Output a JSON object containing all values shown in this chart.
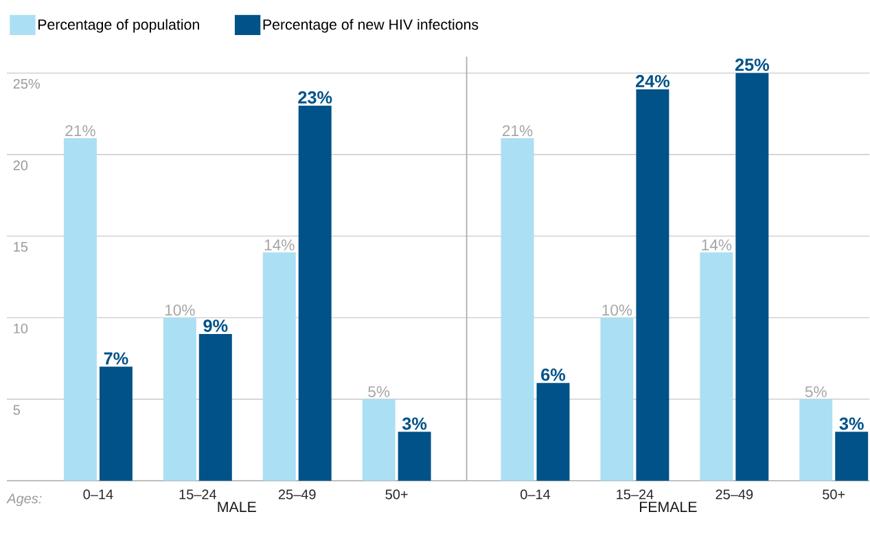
{
  "chart_data": [
    {
      "type": "bar",
      "xlabel": "MALE",
      "categories": [
        "0–14",
        "15–24",
        "25–49",
        "50+"
      ],
      "series": [
        {
          "name": "Percentage of population",
          "color": "#abdff3",
          "values": [
            21,
            10,
            14,
            5
          ],
          "value_labels": [
            "21%",
            "10%",
            "14%",
            "5%"
          ]
        },
        {
          "name": "Percentage of new HIV infections",
          "color": "#005288",
          "values": [
            7,
            9,
            23,
            3
          ],
          "value_labels": [
            "7%",
            "9%",
            "23%",
            "3%"
          ]
        }
      ],
      "ylim": [
        0,
        25
      ],
      "yticks": [
        5,
        10,
        15,
        20,
        {
          "value": 25,
          "label": "25%"
        }
      ],
      "grid": "y",
      "legend": "top left",
      "annotations": [
        "Ages:"
      ]
    },
    {
      "type": "bar",
      "xlabel": "FEMALE",
      "categories": [
        "0–14",
        "15–24",
        "25–49",
        "50+"
      ],
      "series": [
        {
          "color": "#abdff3",
          "values": [
            21,
            10,
            14,
            5
          ],
          "value_labels": [
            "21%",
            "10%",
            "14%",
            "5%"
          ]
        },
        {
          "color": "#005288",
          "values": [
            6,
            24,
            25,
            3
          ],
          "value_labels": [
            "6%",
            "24%",
            "25%",
            "3%"
          ]
        }
      ],
      "ylim": [
        0,
        26
      ],
      "yticks": [
        5,
        10,
        15,
        20,
        25
      ],
      "grid": "y",
      "tick_labels": "x"
    }
  ]
}
